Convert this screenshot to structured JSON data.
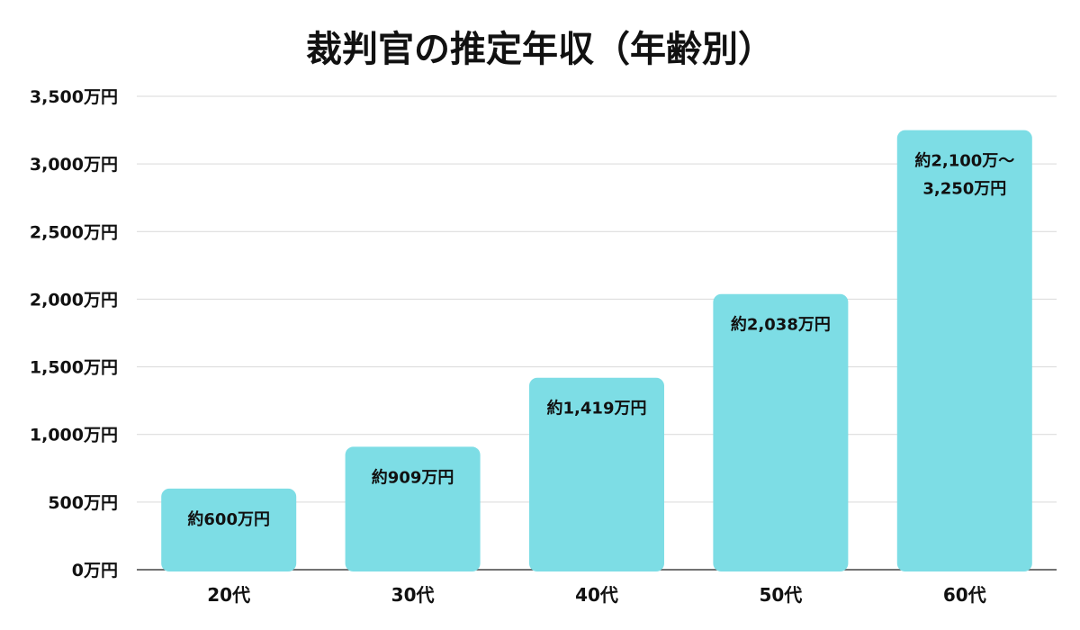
{
  "chart_data": {
    "type": "bar",
    "title": "裁判官の推定年収（年齢別）",
    "xlabel": "",
    "ylabel": "",
    "categories": [
      "20代",
      "30代",
      "40代",
      "50代",
      "60代"
    ],
    "values": [
      600,
      909,
      1419,
      2038,
      3250
    ],
    "data_labels": [
      [
        "約600万円"
      ],
      [
        "約909万円"
      ],
      [
        "約1,419万円"
      ],
      [
        "約2,038万円"
      ],
      [
        "約2,100万～",
        "3,250万円"
      ]
    ],
    "ylim": [
      0,
      3500
    ],
    "yticks": [
      0,
      500,
      1000,
      1500,
      2000,
      2500,
      3000,
      3500
    ],
    "ytick_labels": [
      "0万円",
      "500万円",
      "1,000万円",
      "1,500万円",
      "2,000万円",
      "2,500万円",
      "3,000万円",
      "3,500万円"
    ],
    "grid": true,
    "legend": "none",
    "colors": {
      "bar": "#7ddde5",
      "grid": "#d9d9d9",
      "axis": "#444444",
      "text": "#111111"
    }
  }
}
